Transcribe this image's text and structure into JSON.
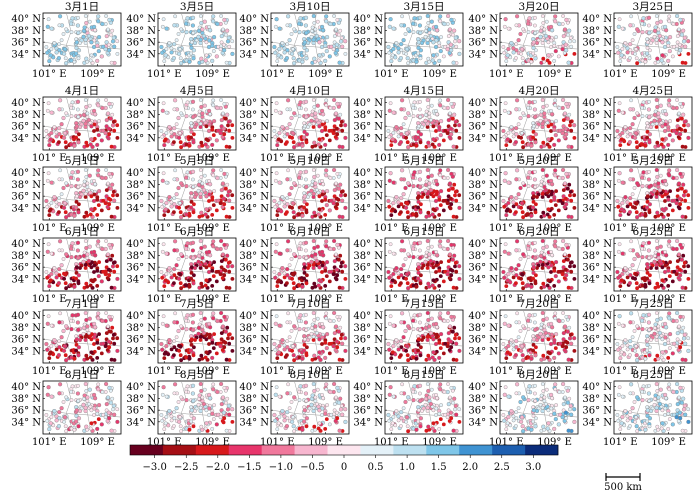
{
  "panels": [
    {
      "title": "3月1日",
      "state": "spring"
    },
    {
      "title": "3月5日",
      "state": "spring"
    },
    {
      "title": "3月10日",
      "state": "spring"
    },
    {
      "title": "3月15日",
      "state": "spring"
    },
    {
      "title": "3月20日",
      "state": "mixed"
    },
    {
      "title": "3月25日",
      "state": "mixed"
    },
    {
      "title": "4月1日",
      "state": "dry"
    },
    {
      "title": "4月5日",
      "state": "dry"
    },
    {
      "title": "4月10日",
      "state": "dry"
    },
    {
      "title": "4月15日",
      "state": "dry"
    },
    {
      "title": "4月20日",
      "state": "dry"
    },
    {
      "title": "4月25日",
      "state": "dry"
    },
    {
      "title": "5月1日",
      "state": "dry"
    },
    {
      "title": "5月5日",
      "state": "dry"
    },
    {
      "title": "5月10日",
      "state": "dry"
    },
    {
      "title": "5月15日",
      "state": "very-dry"
    },
    {
      "title": "5月20日",
      "state": "very-dry"
    },
    {
      "title": "5月25日",
      "state": "very-dry"
    },
    {
      "title": "6月1日",
      "state": "very-dry"
    },
    {
      "title": "6月5日",
      "state": "very-dry"
    },
    {
      "title": "6月10日",
      "state": "very-dry"
    },
    {
      "title": "6月15日",
      "state": "very-dry"
    },
    {
      "title": "6月20日",
      "state": "very-dry"
    },
    {
      "title": "6月25日",
      "state": "very-dry"
    },
    {
      "title": "7月1日",
      "state": "very-dry"
    },
    {
      "title": "7月5日",
      "state": "very-dry"
    },
    {
      "title": "7月10日",
      "state": "dry"
    },
    {
      "title": "7月15日",
      "state": "very-dry"
    },
    {
      "title": "7月20日",
      "state": "dry"
    },
    {
      "title": "7月25日",
      "state": "mixed"
    },
    {
      "title": "8月1日",
      "state": "mixed"
    },
    {
      "title": "8月5日",
      "state": "mixed"
    },
    {
      "title": "8月10日",
      "state": "mixed"
    },
    {
      "title": "8月15日",
      "state": "mixed"
    },
    {
      "title": "8月20日",
      "state": "wet"
    },
    {
      "title": "8月25日",
      "state": "wet"
    }
  ],
  "lat_labels": [
    "40° N",
    "38° N",
    "36° N",
    "34° N"
  ],
  "lon_labels": [
    "101° E",
    "109° E"
  ],
  "colorbar": {
    "tick_labels": [
      "−3.0",
      "−2.5",
      "−2.0",
      "−1.5",
      "−1.0",
      "−0.5",
      "0",
      "0.5",
      "1.0",
      "1.5",
      "2.0",
      "2.5",
      "3.0"
    ],
    "colors": [
      "#67001f",
      "#a50f15",
      "#d7191c",
      "#e7356b",
      "#f0789c",
      "#f7b6cf",
      "#fde6ef",
      "#e4f1f8",
      "#bde0f0",
      "#7fc6e8",
      "#3f93d2",
      "#1d5fb0",
      "#0b2c7a"
    ]
  },
  "scale_bar": {
    "label": "500 km"
  }
}
